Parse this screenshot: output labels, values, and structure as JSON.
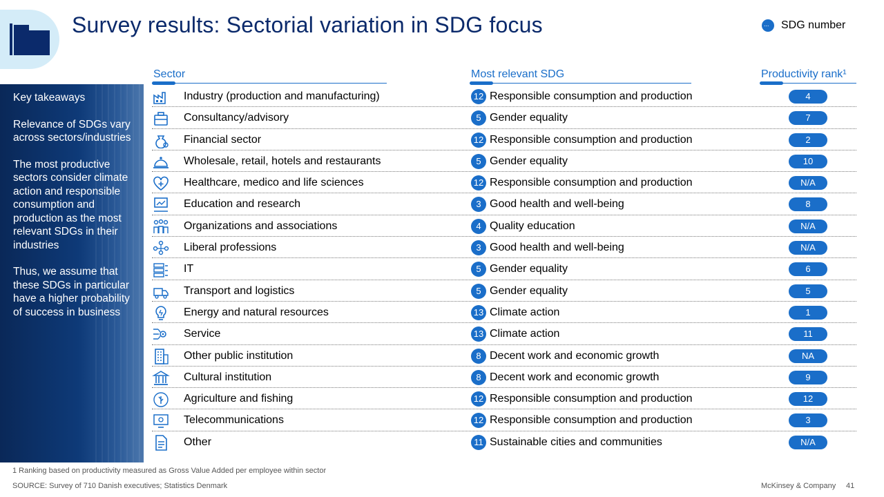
{
  "title": "Survey results: Sectorial variation in SDG focus",
  "legend": {
    "label": "SDG number",
    "icon": "sdg-dot-icon"
  },
  "columns": {
    "sector": "Sector",
    "sdg": "Most relevant SDG",
    "rank": "Productivity rank¹"
  },
  "sidebar": {
    "heading": "Key takeaways",
    "paragraphs": [
      "Relevance of SDGs vary across sectors/industries",
      "The most productive sectors consider climate action and responsible consumption and production as the most relevant SDGs in their industries",
      "Thus, we assume that these SDGs in particular have a higher probability of success in business"
    ]
  },
  "rows": [
    {
      "sector": "Industry (production and manufacturing)",
      "sdg_number": "12",
      "sdg": "Responsible consumption and production",
      "rank": "4",
      "icon": "factory-icon"
    },
    {
      "sector": "Consultancy/advisory",
      "sdg_number": "5",
      "sdg": "Gender equality",
      "rank": "7",
      "icon": "briefcase-icon"
    },
    {
      "sector": "Financial sector",
      "sdg_number": "12",
      "sdg": "Responsible consumption and production",
      "rank": "2",
      "icon": "money-bag-icon"
    },
    {
      "sector": "Wholesale, retail, hotels and restaurants",
      "sdg_number": "5",
      "sdg": "Gender equality",
      "rank": "10",
      "icon": "service-bell-icon"
    },
    {
      "sector": "Healthcare, medico and life sciences",
      "sdg_number": "12",
      "sdg": "Responsible consumption and production",
      "rank": "N/A",
      "icon": "heart-plus-icon"
    },
    {
      "sector": "Education and research",
      "sdg_number": "3",
      "sdg": "Good health and well-being",
      "rank": "8",
      "icon": "presentation-icon"
    },
    {
      "sector": "Organizations and associations",
      "sdg_number": "4",
      "sdg": "Quality education",
      "rank": "N/A",
      "icon": "people-group-icon"
    },
    {
      "sector": "Liberal professions",
      "sdg_number": "3",
      "sdg": "Good health and well-being",
      "rank": "N/A",
      "icon": "network-people-icon"
    },
    {
      "sector": "IT",
      "sdg_number": "5",
      "sdg": "Gender equality",
      "rank": "6",
      "icon": "server-icon"
    },
    {
      "sector": "Transport and logistics",
      "sdg_number": "5",
      "sdg": "Gender equality",
      "rank": "5",
      "icon": "truck-icon"
    },
    {
      "sector": "Energy and natural resources",
      "sdg_number": "13",
      "sdg": "Climate action",
      "rank": "1",
      "icon": "lightbulb-icon"
    },
    {
      "sector": "Service",
      "sdg_number": "13",
      "sdg": "Climate action",
      "rank": "11",
      "icon": "gear-network-icon"
    },
    {
      "sector": "Other public institution",
      "sdg_number": "8",
      "sdg": "Decent work and economic growth",
      "rank": "NA",
      "icon": "building-icon"
    },
    {
      "sector": "Cultural institution",
      "sdg_number": "8",
      "sdg": "Decent work and economic growth",
      "rank": "9",
      "icon": "museum-icon"
    },
    {
      "sector": "Agriculture and fishing",
      "sdg_number": "12",
      "sdg": "Responsible consumption and production",
      "rank": "12",
      "icon": "leaf-icon"
    },
    {
      "sector": "Telecommunications",
      "sdg_number": "12",
      "sdg": "Responsible consumption and production",
      "rank": "3",
      "icon": "monitor-icon"
    },
    {
      "sector": "Other",
      "sdg_number": "11",
      "sdg": "Sustainable cities and communities",
      "rank": "N/A",
      "icon": "document-icon"
    }
  ],
  "footnote": "1 Ranking based on productivity measured as Gross Value Added per employee within sector",
  "source": "SOURCE: Survey of 710 Danish executives; Statistics Denmark",
  "brand": "McKinsey & Company",
  "page_number": "41",
  "colors": {
    "accent": "#1a6ec9",
    "title": "#0b2a6b",
    "sidebar": "#0e3a78",
    "corner": "#d4ecf8"
  }
}
